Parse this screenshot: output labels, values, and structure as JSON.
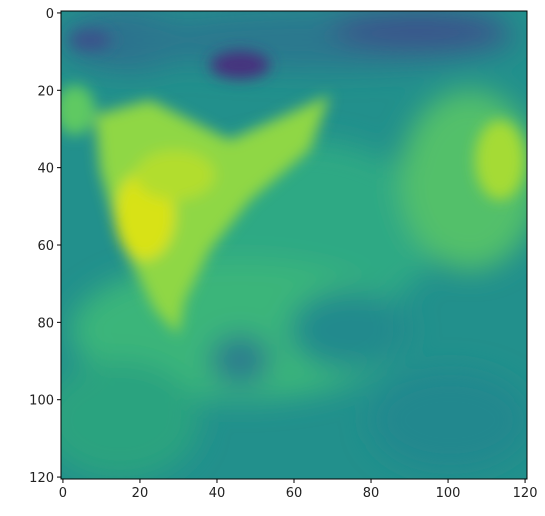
{
  "chart_data": {
    "type": "image",
    "xlim": [
      -0.5,
      120.5
    ],
    "ylim": [
      120.5,
      -0.5
    ],
    "xticks": [
      0,
      20,
      40,
      60,
      80,
      100,
      120
    ],
    "yticks": [
      0,
      20,
      40,
      60,
      80,
      100,
      120
    ]
  }
}
